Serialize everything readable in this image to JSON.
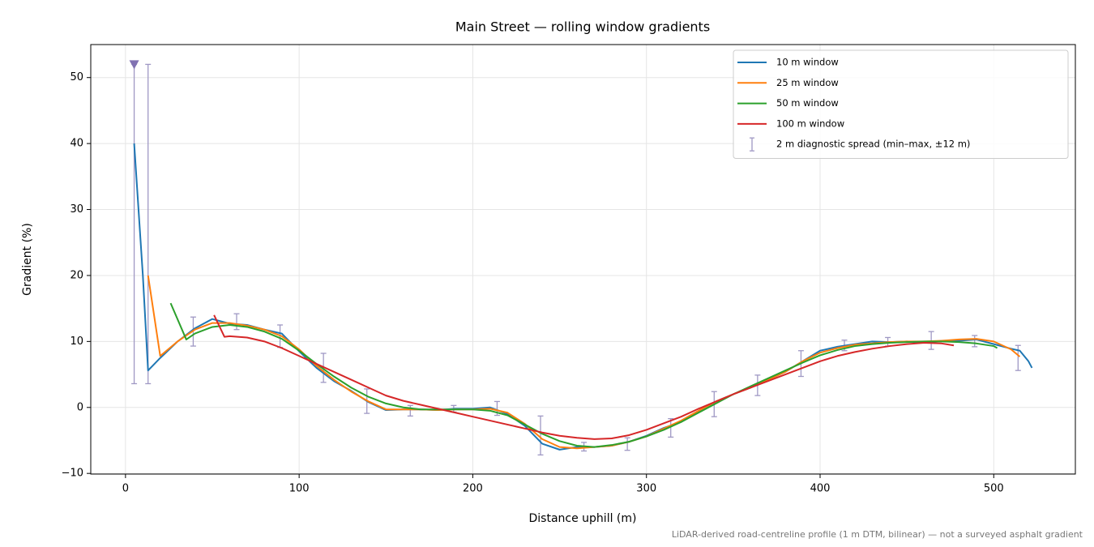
{
  "chart_data": {
    "type": "line",
    "title": "Main Street — rolling window gradients",
    "x_label": "Distance uphill (m)",
    "y_label": "Gradient (%)",
    "footnote": "LiDAR-derived road-centreline profile (1 m DTM, bilinear) — not a surveyed asphalt gradient",
    "xlim": [
      -20,
      547
    ],
    "ylim": [
      -10.1,
      55
    ],
    "xticks": [
      0,
      100,
      200,
      300,
      400,
      500
    ],
    "yticks": [
      {
        "value": -10,
        "label": "−10"
      },
      0,
      10,
      20,
      30,
      40,
      50
    ],
    "grid": true,
    "legend": "upper right",
    "series": [
      {
        "name": "10 m window",
        "color": "#1f77b4",
        "x": [
          5,
          10,
          13,
          20,
          30,
          40,
          50,
          60,
          70,
          80,
          90,
          100,
          110,
          120,
          130,
          140,
          150,
          160,
          170,
          180,
          190,
          200,
          210,
          220,
          230,
          240,
          250,
          260,
          270,
          280,
          290,
          300,
          310,
          320,
          330,
          340,
          350,
          360,
          370,
          380,
          390,
          400,
          410,
          420,
          430,
          440,
          450,
          460,
          470,
          480,
          490,
          500,
          510,
          515,
          520,
          522
        ],
        "values": [
          40,
          20,
          5.6,
          7.5,
          10,
          12,
          13.4,
          12.7,
          12.5,
          11.8,
          11.2,
          8.5,
          6,
          4,
          2.5,
          0.8,
          -0.4,
          -0.3,
          -0.3,
          -0.4,
          -0.2,
          -0.2,
          0,
          -1,
          -2.8,
          -5.5,
          -6.4,
          -6,
          -6,
          -5.8,
          -5.2,
          -4.3,
          -3.1,
          -2.2,
          -0.6,
          0.9,
          2,
          3,
          4.2,
          5.4,
          7,
          8.6,
          9.2,
          9.6,
          10,
          9.9,
          10,
          9.8,
          10.1,
          10.1,
          10.3,
          9.6,
          8.9,
          8.6,
          7,
          6
        ]
      },
      {
        "name": "25 m window",
        "color": "#ff7f0e",
        "x": [
          13,
          20,
          30,
          40,
          50,
          60,
          70,
          80,
          90,
          100,
          110,
          120,
          130,
          140,
          150,
          160,
          170,
          180,
          190,
          200,
          210,
          220,
          230,
          240,
          250,
          260,
          270,
          280,
          290,
          300,
          310,
          320,
          330,
          340,
          350,
          360,
          370,
          380,
          390,
          400,
          410,
          420,
          430,
          440,
          450,
          460,
          470,
          480,
          490,
          500,
          510,
          515
        ],
        "values": [
          20,
          7.8,
          10,
          11.8,
          12.8,
          12.8,
          12.4,
          11.8,
          10.8,
          8.8,
          6.3,
          4.2,
          2.4,
          0.9,
          -0.3,
          -0.3,
          -0.3,
          -0.4,
          -0.3,
          -0.3,
          -0.2,
          -0.8,
          -2.5,
          -4.8,
          -6,
          -6.2,
          -6,
          -5.8,
          -5.2,
          -4.4,
          -3.2,
          -2,
          -0.5,
          0.9,
          2,
          3,
          4.2,
          5.4,
          7,
          8.3,
          9,
          9.5,
          9.7,
          9.9,
          10,
          10,
          10.1,
          10.3,
          10.4,
          10,
          8.8,
          7.7
        ]
      },
      {
        "name": "50 m window",
        "color": "#2ca02c",
        "x": [
          26,
          35,
          40,
          50,
          60,
          70,
          80,
          90,
          100,
          110,
          120,
          130,
          140,
          150,
          160,
          170,
          180,
          190,
          200,
          210,
          220,
          230,
          240,
          250,
          260,
          270,
          280,
          290,
          300,
          310,
          320,
          330,
          340,
          350,
          360,
          370,
          380,
          390,
          400,
          410,
          420,
          430,
          440,
          450,
          460,
          470,
          480,
          490,
          500,
          502
        ],
        "values": [
          15.8,
          10.3,
          11.2,
          12.2,
          12.5,
          12.2,
          11.5,
          10.4,
          8.6,
          6.6,
          4.7,
          3,
          1.6,
          0.6,
          0,
          -0.3,
          -0.3,
          -0.3,
          -0.3,
          -0.5,
          -1.2,
          -2.6,
          -4,
          -5.1,
          -5.8,
          -6,
          -5.7,
          -5.2,
          -4.4,
          -3.4,
          -2.2,
          -0.8,
          0.6,
          2,
          3.2,
          4.4,
          5.6,
          6.8,
          7.9,
          8.7,
          9.3,
          9.6,
          9.8,
          9.9,
          10,
          10,
          9.9,
          9.7,
          9.3,
          9
        ]
      },
      {
        "name": "100 m window",
        "color": "#d62728",
        "x": [
          51,
          57,
          60,
          70,
          80,
          90,
          100,
          110,
          120,
          130,
          140,
          150,
          160,
          170,
          180,
          190,
          200,
          210,
          220,
          230,
          240,
          250,
          260,
          270,
          280,
          290,
          300,
          310,
          320,
          330,
          340,
          350,
          360,
          370,
          380,
          390,
          400,
          410,
          420,
          430,
          440,
          450,
          460,
          470,
          477
        ],
        "values": [
          14,
          10.7,
          10.8,
          10.6,
          10,
          9,
          7.8,
          6.6,
          5.4,
          4.2,
          3,
          1.8,
          1,
          0.4,
          -0.2,
          -0.8,
          -1.4,
          -2,
          -2.6,
          -3.2,
          -3.8,
          -4.3,
          -4.6,
          -4.8,
          -4.7,
          -4.2,
          -3.4,
          -2.4,
          -1.4,
          -0.2,
          0.9,
          2,
          3,
          4,
          5,
          6,
          7,
          7.8,
          8.4,
          8.9,
          9.3,
          9.6,
          9.8,
          9.7,
          9.4
        ]
      }
    ],
    "spread": {
      "name": "2 m diagnostic spread (min–max, ±12 m)",
      "color": "#9f98c4",
      "x": [
        5,
        13,
        39,
        64,
        89,
        114,
        139,
        164,
        189,
        214,
        239,
        264,
        289,
        314,
        339,
        364,
        389,
        414,
        439,
        464,
        489,
        514
      ],
      "low": [
        3.6,
        3.6,
        9.3,
        11.8,
        9.1,
        3.8,
        -0.9,
        -1.3,
        -0.7,
        -1.2,
        -7.2,
        -6.6,
        -6.5,
        -4.5,
        -1.4,
        1.8,
        4.7,
        8.6,
        9.3,
        8.8,
        9.2,
        5.6
      ],
      "high": [
        52,
        52,
        13.7,
        14.2,
        12.5,
        8.2,
        2.8,
        0.3,
        0.3,
        0.9,
        -1.3,
        -5.3,
        -4.6,
        -1.7,
        2.4,
        4.9,
        8.6,
        10.2,
        10.6,
        11.5,
        10.9,
        9.4
      ]
    },
    "clip_marker": {
      "x": 5,
      "y": 52,
      "color": "#8172b2"
    }
  }
}
